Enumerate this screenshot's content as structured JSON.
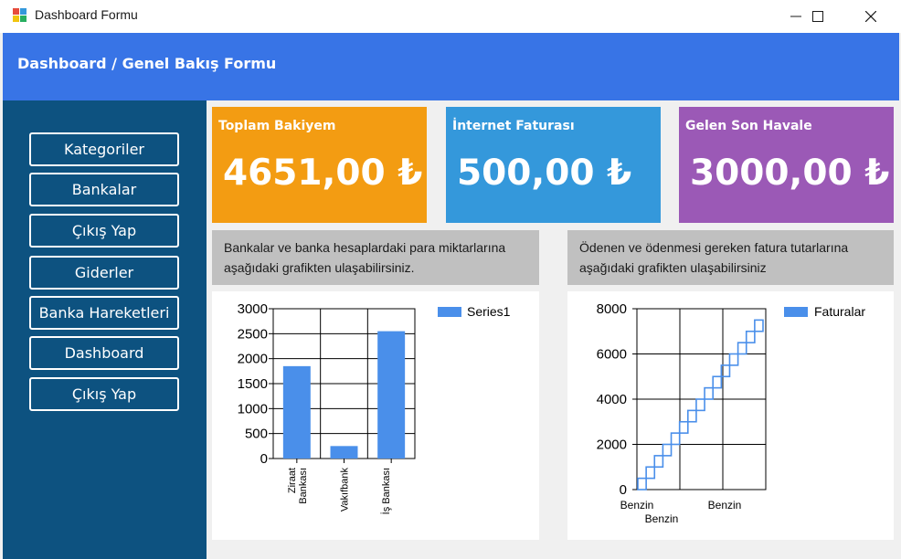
{
  "window": {
    "title": "Dashboard Formu"
  },
  "header": {
    "title": "Dashboard / Genel Bakış Formu"
  },
  "sidebar": {
    "items": [
      {
        "label": "Kategoriler"
      },
      {
        "label": "Bankalar"
      },
      {
        "label": "Çıkış Yap"
      },
      {
        "label": "Giderler"
      },
      {
        "label": "Banka Hareketleri"
      },
      {
        "label": "Dashboard"
      },
      {
        "label": "Çıkış Yap"
      }
    ]
  },
  "cards": [
    {
      "title": "Toplam Bakiyem",
      "value": "4651,00 ₺",
      "color": "#f39c12"
    },
    {
      "title": "İnternet Faturası",
      "value": "500,00 ₺",
      "color": "#3498db"
    },
    {
      "title": "Gelen Son Havale",
      "value": "3000,00 ₺",
      "color": "#9b59b6"
    }
  ],
  "descriptions": {
    "banks": "Bankalar ve banka hesaplardaki para miktarlarına\naşağıdaki grafikten ulaşabilirsiniz.",
    "bills": "Ödenen ve ödenmesi gereken fatura tutarlarına\naşağıdaki grafikten ulaşabilirsiniz"
  },
  "chart_data": [
    {
      "type": "bar",
      "categories": [
        "Ziraat Bankası",
        "Vakıfbank",
        "İş Bankası"
      ],
      "series": [
        {
          "name": "Series1",
          "values": [
            1850,
            250,
            2550
          ]
        }
      ],
      "ylim": [
        0,
        3000
      ],
      "yticks": [
        0,
        500,
        1000,
        1500,
        2000,
        2500,
        3000
      ],
      "grid": true,
      "legend": "top-right",
      "color": "#4a8fea"
    },
    {
      "type": "line",
      "style": "step",
      "x_tick_labels": [
        "Benzin",
        "Benzin"
      ],
      "x_bottom_label": "Benzin",
      "series": [
        {
          "name": "Faturalar",
          "values": [
            500,
            1000,
            1500,
            2000,
            2500,
            3000,
            3500,
            4000,
            4500,
            5000,
            5500,
            6000,
            6500,
            7000,
            7500
          ]
        }
      ],
      "ylim": [
        0,
        8000
      ],
      "yticks": [
        0,
        2000,
        4000,
        6000,
        8000
      ],
      "grid": true,
      "legend": "top-right",
      "color": "#4a8fea"
    }
  ]
}
